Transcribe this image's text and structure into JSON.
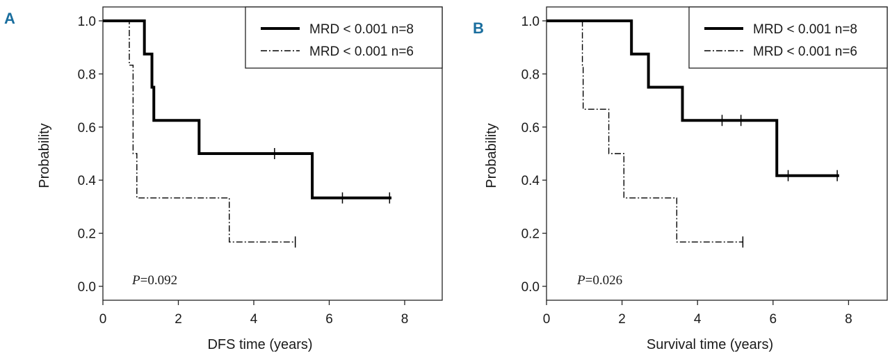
{
  "chart_data": [
    {
      "type": "line",
      "panel": "A",
      "xlabel": "DFS time (years)",
      "ylabel": "Probability",
      "xlim": [
        0,
        9
      ],
      "ylim": [
        0,
        1.05
      ],
      "xticks": [
        "0",
        "2",
        "4",
        "6",
        "8"
      ],
      "yticks": [
        "0.0",
        "0.2",
        "0.4",
        "0.6",
        "0.8",
        "1.0"
      ],
      "p_label": "P",
      "p_value": "=0.092",
      "series": [
        {
          "name": "MRD < 0.001 n=8",
          "style": "solid",
          "steps": [
            [
              0,
              1.0
            ],
            [
              1.1,
              0.875
            ],
            [
              1.3,
              0.75
            ],
            [
              1.35,
              0.625
            ],
            [
              2.55,
              0.5
            ],
            [
              5.55,
              0.333
            ]
          ],
          "end": 7.65,
          "censored": [
            [
              4.55,
              0.5
            ],
            [
              6.35,
              0.333
            ],
            [
              7.6,
              0.333
            ]
          ]
        },
        {
          "name": "MRD < 0.001 n=6",
          "style": "dashdot",
          "steps": [
            [
              0,
              1.0
            ],
            [
              0.7,
              0.833
            ],
            [
              0.8,
              0.5
            ],
            [
              0.9,
              0.333
            ],
            [
              3.35,
              0.167
            ]
          ],
          "end": 5.1,
          "censored": [
            [
              5.1,
              0.167
            ]
          ]
        }
      ]
    },
    {
      "type": "line",
      "panel": "B",
      "xlabel": "Survival time (years)",
      "ylabel": "Probability",
      "xlim": [
        0,
        9
      ],
      "ylim": [
        0,
        1.05
      ],
      "xticks": [
        "0",
        "2",
        "4",
        "6",
        "8"
      ],
      "yticks": [
        "0.0",
        "0.2",
        "0.4",
        "0.6",
        "0.8",
        "1.0"
      ],
      "p_label": "P",
      "p_value": "=0.026",
      "series": [
        {
          "name": "MRD < 0.001 n=8",
          "style": "solid",
          "steps": [
            [
              0,
              1.0
            ],
            [
              2.25,
              0.875
            ],
            [
              2.7,
              0.75
            ],
            [
              3.6,
              0.625
            ],
            [
              6.1,
              0.417
            ]
          ],
          "end": 7.75,
          "censored": [
            [
              4.65,
              0.625
            ],
            [
              5.15,
              0.625
            ],
            [
              6.4,
              0.417
            ],
            [
              7.7,
              0.417
            ]
          ]
        },
        {
          "name": "MRD < 0.001 n=6",
          "style": "dashdot",
          "steps": [
            [
              0,
              1.0
            ],
            [
              0.95,
              0.833
            ],
            [
              0.97,
              0.667
            ],
            [
              1.65,
              0.5
            ],
            [
              2.05,
              0.333
            ],
            [
              3.45,
              0.167
            ]
          ],
          "end": 5.2,
          "censored": [
            [
              5.2,
              0.167
            ]
          ]
        }
      ]
    }
  ]
}
